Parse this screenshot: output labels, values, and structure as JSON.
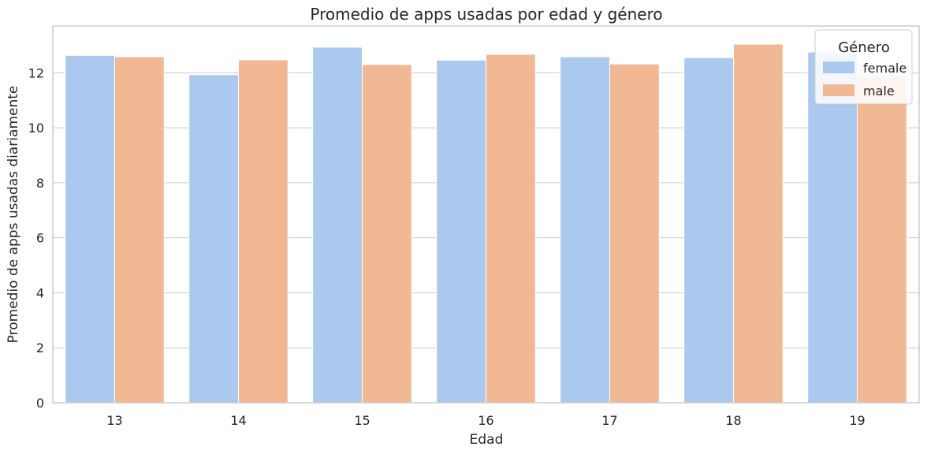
{
  "chart_data": {
    "type": "bar",
    "title": "Promedio de apps usadas por edad y género",
    "xlabel": "Edad",
    "ylabel": "Promedio de apps usadas diariamente",
    "categories": [
      "13",
      "14",
      "15",
      "16",
      "17",
      "18",
      "19"
    ],
    "series": [
      {
        "name": "female",
        "color": "#abc9ee",
        "values": [
          12.63,
          11.93,
          12.93,
          12.46,
          12.58,
          12.55,
          12.75
        ]
      },
      {
        "name": "male",
        "color": "#f0b993",
        "values": [
          12.58,
          12.47,
          12.3,
          12.67,
          12.32,
          13.04,
          11.9
        ]
      }
    ],
    "ylim": [
      0,
      13.7
    ],
    "yticks": [
      0,
      2,
      4,
      6,
      8,
      10,
      12
    ],
    "grid": true,
    "legend": {
      "title": "Género",
      "placement": "top-right"
    }
  }
}
